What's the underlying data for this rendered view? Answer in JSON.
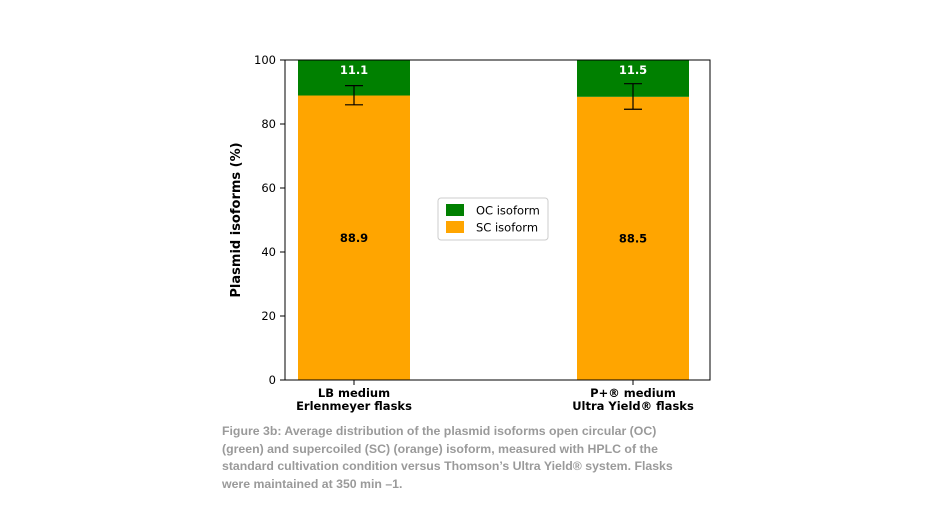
{
  "chart_data": {
    "type": "bar",
    "stacked": true,
    "categories": [
      [
        "LB medium",
        "Erlenmeyer flasks"
      ],
      [
        "P+® medium",
        "Ultra Yield® flasks"
      ]
    ],
    "series": [
      {
        "name": "SC isoform",
        "color": "#FFA500",
        "values": [
          88.9,
          88.5
        ],
        "value_labels": [
          "88.9",
          "88.5"
        ]
      },
      {
        "name": "OC isoform",
        "color": "#008000",
        "values": [
          11.1,
          11.5
        ],
        "value_labels": [
          "11.1",
          "11.5"
        ]
      }
    ],
    "error_bars": {
      "center": [
        89.0,
        88.6
      ],
      "error": [
        3.0,
        4.0
      ]
    },
    "ylabel": "Plasmid isoforms (%)",
    "xlabel": "",
    "ylim": [
      0,
      100
    ],
    "yticks": [
      0,
      20,
      40,
      60,
      80,
      100
    ],
    "grid": false,
    "legend": {
      "position": "center",
      "entries": [
        "OC isoform",
        "SC isoform"
      ]
    }
  },
  "caption": "Figure 3b: Average distribution of the plasmid isoforms open circular (OC) (green) and supercoiled (SC) (orange) isoform, measured with HPLC of the standard cultivation condition versus Thomson’s Ultra Yield® system. Flasks were maintained at 350 min –1."
}
